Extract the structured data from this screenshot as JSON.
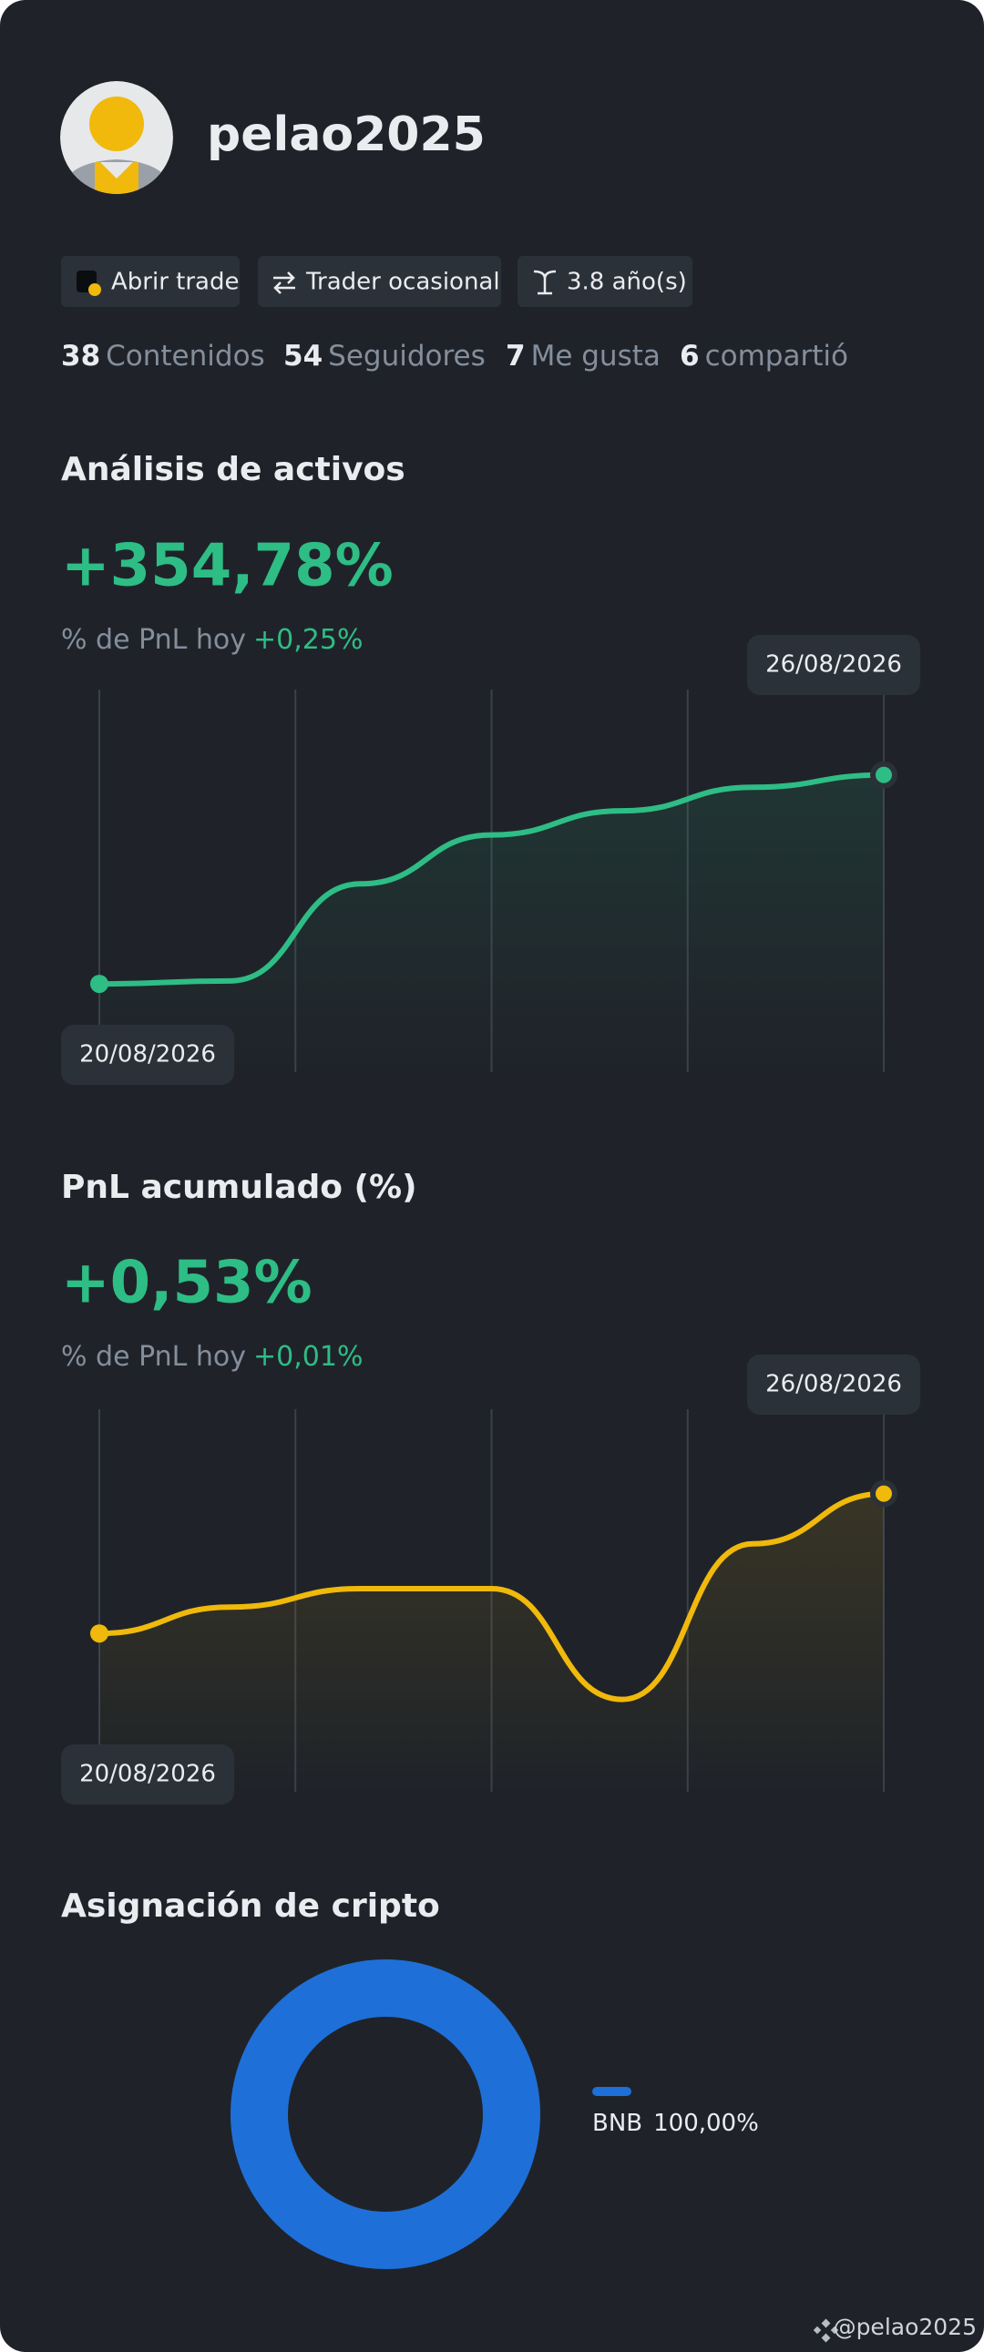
{
  "profile": {
    "username": "pelao2025"
  },
  "badges": [
    "Abrir trade",
    "Trader ocasional",
    "3.8 año(s)"
  ],
  "stats": [
    {
      "value": 38,
      "label": "Contenidos"
    },
    {
      "value": 54,
      "label": "Seguidores"
    },
    {
      "value": 7,
      "label": "Me gusta"
    },
    {
      "value": 6,
      "label": "compartió"
    }
  ],
  "chart_data": [
    {
      "type": "line",
      "title": "Análisis de activos",
      "headline": "+354,78%",
      "subtitle": "% de PnL hoy",
      "subtitle_value": "+0,25%",
      "categories": [
        "20/08/2026",
        null,
        null,
        null,
        null,
        null,
        "26/08/2026"
      ],
      "series": [
        {
          "color": "#2ebd85",
          "values": [
            0,
            5,
            170,
            253,
            294,
            334,
            355
          ]
        }
      ],
      "ylim": [
        -150,
        500
      ]
    },
    {
      "type": "line",
      "title": "PnL acumulado (%)",
      "headline": "+0,53%",
      "subtitle": "% de PnL hoy",
      "subtitle_value": "+0,01%",
      "categories": [
        "20/08/2026",
        null,
        null,
        null,
        null,
        null,
        "26/08/2026"
      ],
      "series": [
        {
          "color": "#f0b90b",
          "values": [
            0,
            0.1,
            0.17,
            0.17,
            -0.25,
            0.34,
            0.53
          ]
        }
      ],
      "ylim": [
        -0.6,
        0.85
      ]
    },
    {
      "type": "pie",
      "title": "Asignación de cripto",
      "categories": [
        "BNB"
      ],
      "values": [
        100
      ],
      "value_labels": [
        "100,00%"
      ],
      "colors": [
        "#1f6fd8"
      ],
      "donut": true
    }
  ],
  "footer": "@pelao2025"
}
